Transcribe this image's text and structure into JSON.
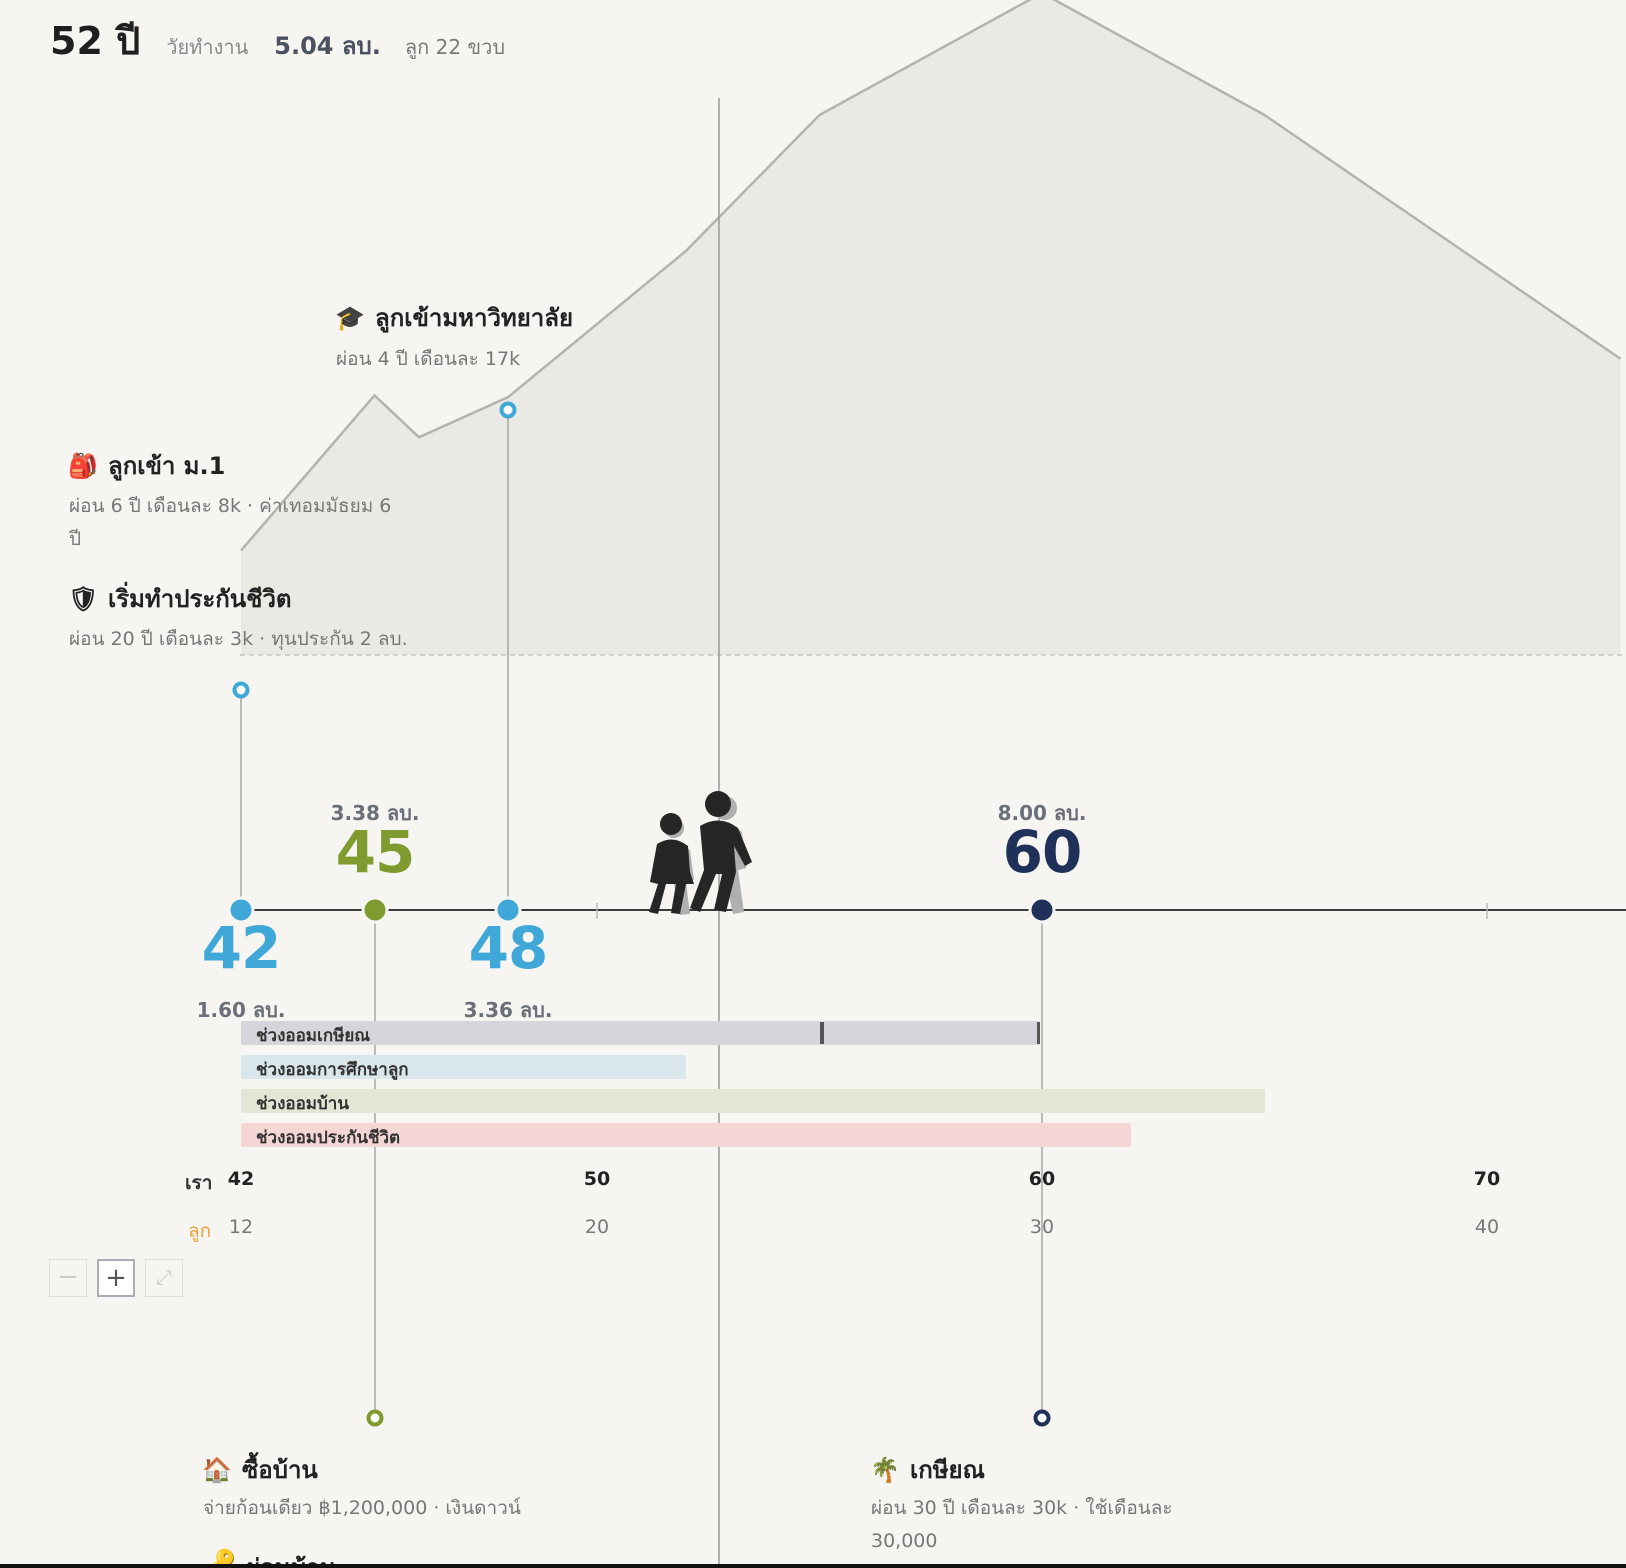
{
  "header": {
    "age": "52 ปี",
    "phase": "วัยทำงาน",
    "amount": "5.04 ลบ.",
    "child_age": "ลูก 22 ขวบ"
  },
  "events": {
    "university": {
      "title": "ลูกเข้ามหาวิทยาลัย",
      "subtitle": "ผ่อน 4 ปี เดือนละ 17k",
      "icon": "graduation-cap-icon"
    },
    "secondary": {
      "title": "ลูกเข้า ม.1",
      "subtitle_line1": "ผ่อน 6 ปี เดือนละ 8k · ค่าเทอมมัธยม 6",
      "subtitle_line2": "ปี",
      "icon": "backpack-icon"
    },
    "insurance": {
      "title": "เริ่มทำประกันชีวิต",
      "subtitle": "ผ่อน 20 ปี เดือนละ 3k · ทุนประกัน 2 ลบ.",
      "icon": "shield-icon"
    },
    "house": {
      "title": "ซื้อบ้าน",
      "subtitle": "จ่ายก้อนเดียว ฿1,200,000 · เงินดาวน์",
      "icon": "house-icon"
    },
    "retire": {
      "title": "เกษียณ",
      "subtitle_line1": "ผ่อน 30 ปี เดือนละ 30k · ใช้เดือนละ",
      "subtitle_line2": "30,000",
      "icon": "palm-tree-icon"
    },
    "partial_next": {
      "title": "ผ่อนบ้าน",
      "icon": "key-icon"
    }
  },
  "milestones": [
    {
      "age": "42",
      "amount": "1.60 ลบ.",
      "color": "#3fa8d8"
    },
    {
      "age": "45",
      "amount": "3.38 ลบ.",
      "color": "#7f9a2e"
    },
    {
      "age": "48",
      "amount": "3.36 ลบ.",
      "color": "#3fa8d8"
    },
    {
      "age": "60",
      "amount": "8.00 ลบ.",
      "color": "#1f3158"
    }
  ],
  "saving_bars": [
    {
      "label": "ช่วงออมเกษียณ",
      "from_age": 42,
      "to_age": 60,
      "color": "#d4d6db"
    },
    {
      "label": "ช่วงออมการศึกษาลูก",
      "from_age": 42,
      "to_age": 52,
      "color": "#d9e6ec"
    },
    {
      "label": "ช่วงออมบ้าน",
      "from_age": 42,
      "to_age": 65,
      "color": "#e3e6d4"
    },
    {
      "label": "ช่วงออมประกันชีวิต",
      "from_age": 42,
      "to_age": 62,
      "color": "#f4d7d5"
    }
  ],
  "axis": {
    "our_label": "เรา",
    "child_label": "ลูก",
    "ticks": [
      {
        "our": "42",
        "child": "12"
      },
      {
        "our": "50",
        "child": "20"
      },
      {
        "our": "60",
        "child": "30"
      },
      {
        "our": "70",
        "child": "40"
      }
    ]
  },
  "chart_data": {
    "type": "area",
    "x": [
      42,
      45,
      46,
      48,
      52,
      55,
      60,
      65,
      73
    ],
    "y": [
      1.6,
      3.38,
      2.9,
      3.36,
      5.04,
      6.6,
      8.0,
      6.6,
      3.8
    ],
    "current_age": 52,
    "ylabel": ""
  },
  "zoom": {
    "minus": "−",
    "plus": "+",
    "expand": "⤢"
  },
  "colors": {
    "accent_blue": "#3fa8d8",
    "olive": "#7f9a2e",
    "navy": "#1f3158",
    "child_orange": "#e8a13a"
  }
}
